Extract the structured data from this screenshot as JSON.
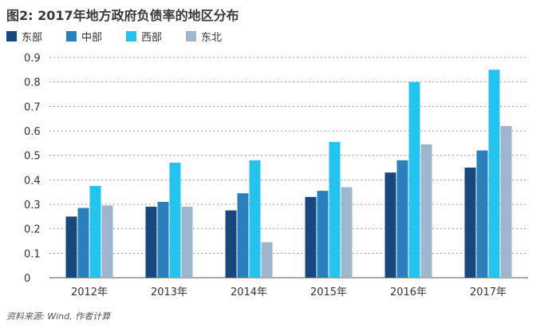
{
  "title": "图2: 2017年地方政府负债率的地区分布",
  "source": "资料来源: Wind, 作者计算",
  "chart_data": {
    "type": "bar",
    "title": "图2: 2017年地方政府负债率的地区分布",
    "categories": [
      "2012年",
      "2013年",
      "2014年",
      "2015年",
      "2016年",
      "2017年"
    ],
    "series": [
      {
        "name": "东部",
        "color": "#17497f",
        "values": [
          0.25,
          0.29,
          0.275,
          0.33,
          0.43,
          0.45
        ]
      },
      {
        "name": "中部",
        "color": "#2a80bd",
        "values": [
          0.285,
          0.31,
          0.345,
          0.355,
          0.48,
          0.52
        ]
      },
      {
        "name": "西部",
        "color": "#24c4ef",
        "values": [
          0.375,
          0.47,
          0.48,
          0.555,
          0.8,
          0.85
        ]
      },
      {
        "name": "东北",
        "color": "#9fb5cd",
        "values": [
          0.295,
          0.29,
          0.145,
          0.37,
          0.545,
          0.62
        ]
      }
    ],
    "ylim": [
      0,
      0.9
    ],
    "yticks": [
      "0",
      "0.1",
      "0.2",
      "0.3",
      "0.4",
      "0.5",
      "0.6",
      "0.7",
      "0.8",
      "0.9"
    ],
    "grid": "dashed horizontal",
    "legend": "top-left"
  }
}
